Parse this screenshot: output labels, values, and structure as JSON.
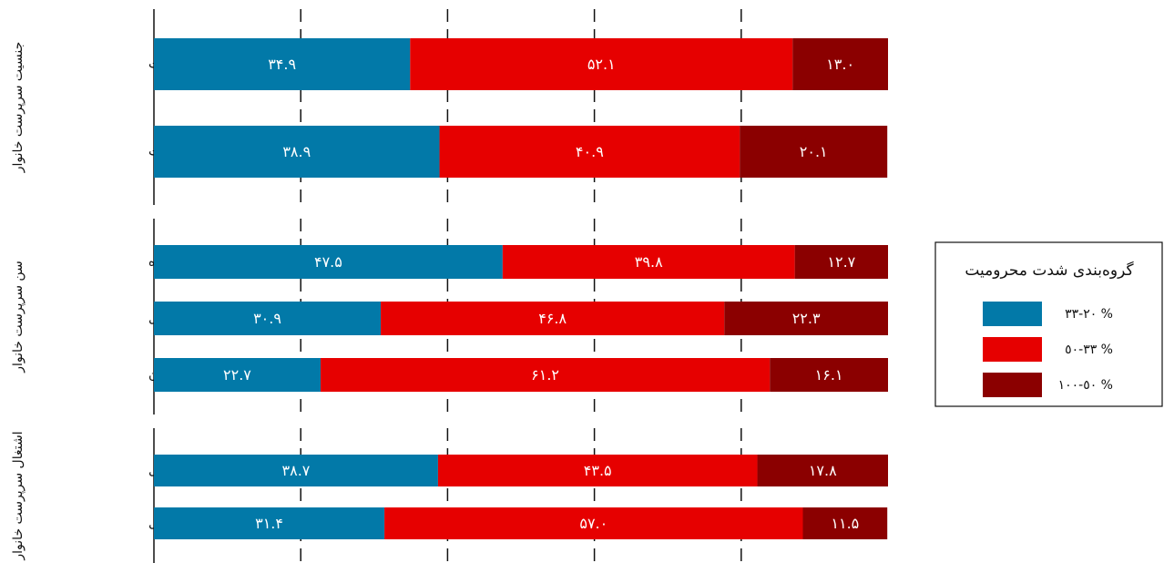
{
  "chart_data": {
    "type": "bar",
    "orientation": "horizontal",
    "stacked": true,
    "xlim": [
      0,
      100
    ],
    "grid": true,
    "legend_position": "right",
    "legend_title": "گروه‌بندی شدت محرومیت",
    "series": [
      {
        "name": "٢٠-٣٣ %",
        "color": "#0279a8"
      },
      {
        "name": "٣٣-٥٠ %",
        "color": "#e60000"
      },
      {
        "name": "٥٠-١٠٠ %",
        "color": "#8b0000"
      }
    ],
    "groups": [
      {
        "label": "جنسیت سرپرست خانوار",
        "categories": [
          {
            "label": "مردسرپرست",
            "values": [
              34.9,
              52.1,
              13.0
            ],
            "labels": [
              "٣۴.٩",
              "۵٢.١",
              "١٣.٠"
            ]
          },
          {
            "label": "زن‌سرپرست",
            "values": [
              38.9,
              40.9,
              20.1
            ],
            "labels": [
              "٣٨.٩",
              "۴٠.٩",
              "٢٠.١"
            ]
          }
        ]
      },
      {
        "label": "سن سرپرست خانوار",
        "categories": [
          {
            "label": "سالخورده",
            "values": [
              47.5,
              39.8,
              12.7
            ],
            "labels": [
              "۴٧.۵",
              "٣٩.٨",
              "١٢.٧"
            ]
          },
          {
            "label": "میانسال",
            "values": [
              30.9,
              46.8,
              22.3
            ],
            "labels": [
              "٣٠.٩",
              "۴۶.٨",
              "٢٢.٣"
            ]
          },
          {
            "label": "جوان",
            "values": [
              22.7,
              61.2,
              16.1
            ],
            "labels": [
              "٢٢.٧",
              "۶١.٢",
              "١۶.١"
            ]
          }
        ]
      },
      {
        "label": "اشتغال سرپرست خانوار",
        "categories": [
          {
            "label": "فاقد شغل",
            "values": [
              38.7,
              43.5,
              17.8
            ],
            "labels": [
              "٣٨.٧",
              "۴٣.۵",
              "١٧.٨"
            ]
          },
          {
            "label": "شاغل",
            "values": [
              31.4,
              57.0,
              11.5
            ],
            "labels": [
              "٣١.۴",
              "۵٧.٠",
              "١١.۵"
            ]
          }
        ]
      }
    ]
  }
}
